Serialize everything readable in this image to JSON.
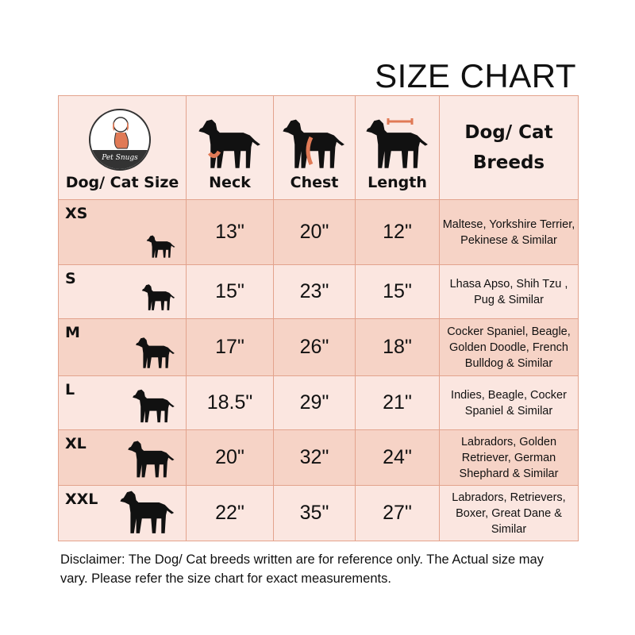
{
  "title": "SIZE CHART",
  "logo_text": "Pet Snugs",
  "header": {
    "size": "Dog/ Cat Size",
    "neck": "Neck",
    "chest": "Chest",
    "length": "Length",
    "breeds_line1": "Dog/ Cat",
    "breeds_line2": "Breeds"
  },
  "colors": {
    "accent": "#e07a56",
    "row_dark": "#f6d3c6",
    "row_light": "#fbe6e0",
    "border": "#e3a38d"
  },
  "rows": [
    {
      "size": "XS",
      "neck": "13\"",
      "chest": "20\"",
      "length": "12\"",
      "breeds": "Maltese, Yorkshire Terrier, Pekinese & Similar"
    },
    {
      "size": "S",
      "neck": "15\"",
      "chest": "23\"",
      "length": "15\"",
      "breeds": "Lhasa Apso, Shih Tzu , Pug & Similar"
    },
    {
      "size": "M",
      "neck": "17\"",
      "chest": "26\"",
      "length": "18\"",
      "breeds": "Cocker Spaniel, Beagle, Golden Doodle, French Bulldog & Similar"
    },
    {
      "size": "L",
      "neck": "18.5\"",
      "chest": "29\"",
      "length": "21\"",
      "breeds": "Indies, Beagle, Cocker Spaniel & Similar"
    },
    {
      "size": "XL",
      "neck": "20\"",
      "chest": "32\"",
      "length": "24\"",
      "breeds": "Labradors, Golden Retriever, German Shephard & Similar"
    },
    {
      "size": "XXL",
      "neck": "22\"",
      "chest": "35\"",
      "length": "27\"",
      "breeds": "Labradors, Retrievers, Boxer, Great Dane & Similar"
    }
  ],
  "disclaimer": "Disclaimer: The Dog/ Cat breeds written are for reference only. The Actual size may vary. Please refer the size chart for exact measurements."
}
